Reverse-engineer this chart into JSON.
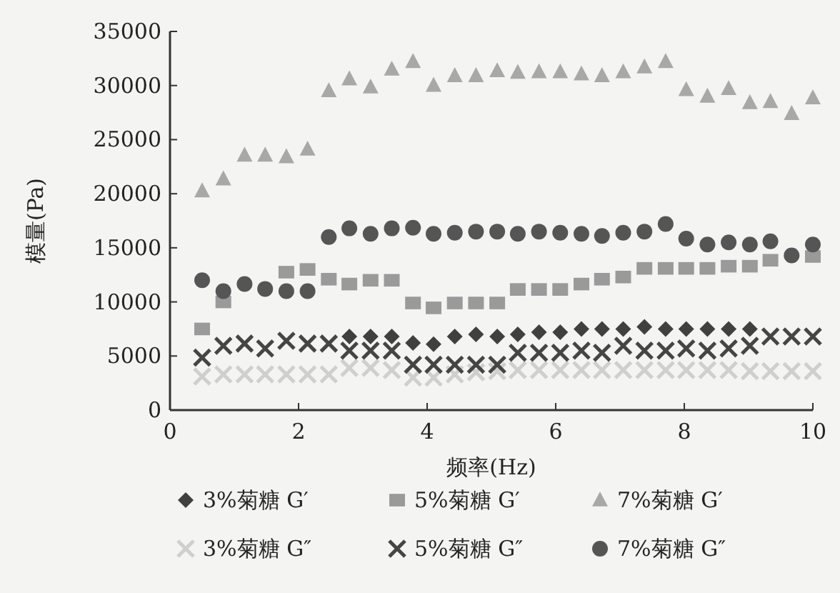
{
  "chart_data": {
    "type": "scatter",
    "xlabel": "频率(Hz)",
    "ylabel": "模量(Pa)",
    "x": [
      0.5,
      0.83,
      1.16,
      1.48,
      1.81,
      2.14,
      2.47,
      2.79,
      3.12,
      3.45,
      3.78,
      4.1,
      4.43,
      4.76,
      5.09,
      5.41,
      5.74,
      6.07,
      6.4,
      6.72,
      7.05,
      7.38,
      7.71,
      8.03,
      8.36,
      8.69,
      9.02,
      9.34,
      9.67,
      10.0
    ],
    "xlim": [
      0,
      10
    ],
    "xticks": [
      0,
      2,
      4,
      6,
      8,
      10
    ],
    "ylim": [
      0,
      35000
    ],
    "yticks": [
      0,
      5000,
      10000,
      15000,
      20000,
      25000,
      30000,
      35000
    ],
    "grid": false,
    "legend": "bottom",
    "series": [
      {
        "name": "3%菊糖 G′",
        "color": "#404040",
        "marker": "diamond",
        "values": [
          null,
          null,
          null,
          null,
          null,
          null,
          null,
          6800,
          6800,
          6800,
          6200,
          6100,
          6800,
          7000,
          6800,
          7000,
          7200,
          7200,
          7500,
          7500,
          7500,
          7700,
          7500,
          7500,
          7500,
          7500,
          7500,
          null,
          null,
          null
        ]
      },
      {
        "name": "5%菊糖 G′",
        "color": "#9a9a9a",
        "marker": "square",
        "values": [
          7500,
          10000,
          null,
          null,
          12750,
          13000,
          12100,
          11650,
          12000,
          12000,
          9900,
          9450,
          9900,
          9900,
          9900,
          11150,
          11150,
          11150,
          11650,
          12100,
          12300,
          13100,
          13100,
          13100,
          13100,
          13300,
          13300,
          13850,
          null,
          14200
        ]
      },
      {
        "name": "7%菊糖 G′",
        "color": "#a8a8a8",
        "marker": "triangle",
        "values": [
          20250,
          21350,
          23550,
          23550,
          23400,
          24100,
          29500,
          30600,
          29850,
          31500,
          32200,
          30000,
          30900,
          30900,
          31350,
          31200,
          31250,
          31250,
          31050,
          30900,
          31250,
          31700,
          32200,
          29600,
          29000,
          29700,
          28400,
          28500,
          27400,
          28850
        ]
      },
      {
        "name": "3%菊糖 G″",
        "color": "#cfcfcf",
        "marker": "cross",
        "values": [
          3100,
          3300,
          3300,
          3300,
          3300,
          3300,
          3300,
          3900,
          3900,
          3700,
          3000,
          3000,
          3300,
          3500,
          3600,
          3700,
          3700,
          3700,
          3700,
          3700,
          3700,
          3700,
          3700,
          3700,
          3700,
          3700,
          3600,
          3600,
          3600,
          3600
        ]
      },
      {
        "name": "5%菊糖 G″",
        "color": "#454545",
        "marker": "cross",
        "values": [
          4850,
          5950,
          6150,
          5700,
          6400,
          6150,
          6150,
          5500,
          5500,
          5500,
          4200,
          4200,
          4200,
          4200,
          4200,
          5300,
          5300,
          5300,
          5500,
          5300,
          5950,
          5500,
          5500,
          5700,
          5500,
          5700,
          5950,
          6800,
          6800,
          6800
        ]
      },
      {
        "name": "7%菊糖 G″",
        "color": "#555555",
        "marker": "circle",
        "values": [
          12000,
          11000,
          11650,
          11200,
          11000,
          11000,
          16000,
          16800,
          16300,
          16800,
          16850,
          16300,
          16400,
          16500,
          16500,
          16300,
          16500,
          16400,
          16300,
          16100,
          16400,
          16500,
          17200,
          15850,
          15300,
          15500,
          15300,
          15600,
          14300,
          15300
        ]
      }
    ]
  }
}
